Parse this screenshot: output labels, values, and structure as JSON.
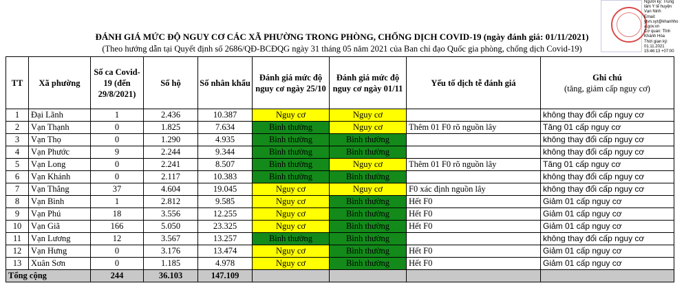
{
  "header": {
    "title": "ĐÁNH GIÁ MỨC ĐỘ NGUY CƠ CÁC XÃ PHƯỜNG TRONG PHÒNG, CHỐNG DỊCH COVID-19  (ngày đánh giá: 01/11/2021)",
    "subtitle": "(Theo hướng dẫn tại Quyết định số 2686/QĐ-BCĐQG ngày 31 tháng 05 năm 2021 của Ban chỉ đạo Quốc gia phòng, chống dịch Covid-19)"
  },
  "signature": {
    "lines": [
      "Người ký: Trung",
      "tâm Y tế huyện",
      "Vạn Ninh",
      "Email:",
      "ytvn.syt@khanhho",
      "a.gov.vn",
      "Cơ quan: Tỉnh",
      "Khánh Hòa",
      "Thời gian ký:",
      "01.11.2021",
      "15:46:13 +07:00"
    ]
  },
  "table": {
    "headers": {
      "tt": "TT",
      "ward": "Xã phường",
      "cases": "Số ca Covid-19 (đến 29/8/2021)",
      "households": "Số hộ",
      "population": "Số nhân khẩu",
      "risk_2510": "Đánh giá mức độ nguy cơ ngày 25/10",
      "risk_0111": "Đánh giá mức độ nguy cơ ngày 01/11",
      "factors": "Yếu tố dịch tễ đánh giá",
      "note": "Ghi chú",
      "note_sub": "(tăng, giảm cấp nguy cơ)"
    },
    "rows": [
      {
        "tt": "1",
        "ward": "Đại Lãnh",
        "cases": "1",
        "households": "2.436",
        "population": "10.387",
        "risk_2510": "Nguy cơ",
        "risk_0111": "Nguy cơ",
        "factors": "",
        "note": "không thay đổi cấp nguy cơ"
      },
      {
        "tt": "2",
        "ward": "Vạn Thạnh",
        "cases": "0",
        "households": "1.825",
        "population": "7.634",
        "risk_2510": "Bình thường",
        "risk_0111": "Nguy cơ",
        "factors": "Thêm 01 F0 rõ nguồn lây",
        "note": "Tăng 01 cấp nguy cơ"
      },
      {
        "tt": "3",
        "ward": "Vạn Thọ",
        "cases": "0",
        "households": "1.290",
        "population": "4.935",
        "risk_2510": "Bình thường",
        "risk_0111": "Bình thường",
        "factors": "",
        "note": "không thay đổi cấp nguy cơ"
      },
      {
        "tt": "4",
        "ward": "Vạn Phước",
        "cases": "9",
        "households": "2.244",
        "population": "9.344",
        "risk_2510": "Bình thường",
        "risk_0111": "Bình thường",
        "factors": "",
        "note": "không thay đổi cấp nguy cơ"
      },
      {
        "tt": "5",
        "ward": "Vạn Long",
        "cases": "0",
        "households": "2.241",
        "population": "8.507",
        "risk_2510": "Bình thường",
        "risk_0111": "Nguy cơ",
        "factors": "Thêm 01 F0 rõ nguồn lây",
        "note": "Tăng 01 cấp nguy cơ"
      },
      {
        "tt": "6",
        "ward": "Vạn Khánh",
        "cases": "0",
        "households": "2.117",
        "population": "10.383",
        "risk_2510": "Bình thường",
        "risk_0111": "Bình thường",
        "factors": "",
        "note": "không thay đổi cấp nguy cơ"
      },
      {
        "tt": "7",
        "ward": "Vạn Thắng",
        "cases": "37",
        "households": "4.604",
        "population": "19.045",
        "risk_2510": "Nguy cơ",
        "risk_0111": "Nguy cơ",
        "factors": "F0 xác định nguồn lây",
        "note": "không thay đổi cấp nguy cơ"
      },
      {
        "tt": "8",
        "ward": "Vạn Bình",
        "cases": "1",
        "households": "2.812",
        "population": "9.585",
        "risk_2510": "Nguy cơ",
        "risk_0111": "Bình thường",
        "factors": "Hết F0",
        "note": "Giảm 01 cấp nguy cơ"
      },
      {
        "tt": "9",
        "ward": "Vạn Phú",
        "cases": "18",
        "households": "3.556",
        "population": "12.255",
        "risk_2510": "Nguy cơ",
        "risk_0111": "Bình thường",
        "factors": "Hết F0",
        "note": "Giảm 01 cấp nguy cơ"
      },
      {
        "tt": "10",
        "ward": "Vạn Giã",
        "cases": "166",
        "households": "5.050",
        "population": "23.325",
        "risk_2510": "Nguy cơ",
        "risk_0111": "Bình thường",
        "factors": "Hết F0",
        "note": "Giảm 01 cấp nguy cơ"
      },
      {
        "tt": "11",
        "ward": "Vạn Lương",
        "cases": "12",
        "households": "3.567",
        "population": "13.257",
        "risk_2510": "Bình thường",
        "risk_0111": "Bình thường",
        "factors": "",
        "note": "không thay đổi cấp nguy cơ"
      },
      {
        "tt": "12",
        "ward": "Vạn Hưng",
        "cases": "0",
        "households": "3.176",
        "population": "13.474",
        "risk_2510": "Nguy cơ",
        "risk_0111": "Bình thường",
        "factors": "Hết F0",
        "note": "Giảm 01 cấp nguy cơ"
      },
      {
        "tt": "13",
        "ward": "Xuân Sơn",
        "cases": "0",
        "households": "1.185",
        "population": "4.978",
        "risk_2510": "Nguy cơ",
        "risk_0111": "Bình thường",
        "factors": "Hết F0",
        "note": "Giảm 01 cấp nguy cơ"
      }
    ],
    "total": {
      "label": "Tổng cộng",
      "cases": "244",
      "households": "36.103",
      "population": "147.109"
    }
  },
  "colors": {
    "risk": "#ffff00",
    "normal": "#138a1a",
    "total_row": "#c8c8c8",
    "seal": "#d94a4a"
  }
}
